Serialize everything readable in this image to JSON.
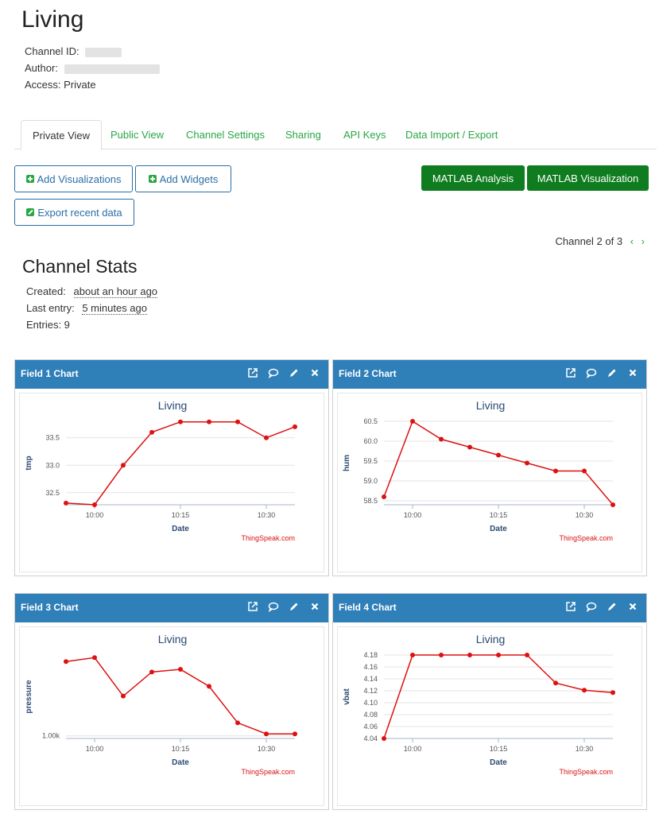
{
  "channel": {
    "title": "Living",
    "id_label": "Channel ID:",
    "author_label": "Author:",
    "access_label": "Access:",
    "access_value": "Private"
  },
  "tabs": [
    {
      "label": "Private View",
      "active": true
    },
    {
      "label": "Public View"
    },
    {
      "label": "Channel Settings"
    },
    {
      "label": "Sharing"
    },
    {
      "label": "API Keys"
    },
    {
      "label": "Data Import / Export"
    }
  ],
  "buttons": {
    "add_visualizations": "Add Visualizations",
    "add_widgets": "Add Widgets",
    "export_recent": "Export recent data",
    "matlab_analysis": "MATLAB Analysis",
    "matlab_visualization": "MATLAB Visualization"
  },
  "pager": {
    "text": "Channel 2 of 3",
    "prev": "‹",
    "next": "›"
  },
  "stats": {
    "title": "Channel Stats",
    "created_label": "Created:",
    "created_value": "about an hour ago",
    "last_entry_label": "Last entry:",
    "last_entry_value": "5 minutes ago",
    "entries_text": "Entries: 9"
  },
  "colors": {
    "header": "#2f7fb8",
    "accent": "#28a745",
    "line": "#dd1111",
    "matlab": "#0e7c1f"
  },
  "panels": [
    {
      "title": "Field 1 Chart"
    },
    {
      "title": "Field 2 Chart"
    },
    {
      "title": "Field 3 Chart"
    },
    {
      "title": "Field 4 Chart"
    }
  ],
  "chart_data": [
    {
      "type": "line",
      "title": "Living",
      "xlabel": "Date",
      "ylabel": "tmp",
      "credit": "ThingSpeak.com",
      "x_min": "09:55",
      "x_max": "10:35",
      "x_ticks": [
        "10:00",
        "10:15",
        "10:30"
      ],
      "y_ticks": [
        32.5,
        33.0,
        33.5
      ],
      "y_tick_labels": [
        "32.5",
        "33.0",
        "33.5"
      ],
      "ylim": [
        32.28,
        33.8
      ],
      "x": [
        "09:55",
        "10:00",
        "10:05",
        "10:10",
        "10:15",
        "10:20",
        "10:25",
        "10:30",
        "10:35"
      ],
      "values": [
        32.31,
        32.28,
        33.0,
        33.6,
        33.79,
        33.79,
        33.79,
        33.5,
        33.7
      ]
    },
    {
      "type": "line",
      "title": "Living",
      "xlabel": "Date",
      "ylabel": "hum",
      "credit": "ThingSpeak.com",
      "x_min": "09:55",
      "x_max": "10:35",
      "x_ticks": [
        "10:00",
        "10:15",
        "10:30"
      ],
      "y_ticks": [
        58.5,
        59.0,
        59.5,
        60.0,
        60.5
      ],
      "y_tick_labels": [
        "58.5",
        "59.0",
        "59.5",
        "60.0",
        "60.5"
      ],
      "ylim": [
        58.4,
        60.5
      ],
      "x": [
        "09:55",
        "10:00",
        "10:05",
        "10:10",
        "10:15",
        "10:20",
        "10:25",
        "10:30",
        "10:35"
      ],
      "values": [
        58.6,
        60.5,
        60.05,
        59.85,
        59.65,
        59.45,
        59.25,
        59.25,
        58.4
      ]
    },
    {
      "type": "line",
      "title": "Living",
      "xlabel": "Date",
      "ylabel": "pressure",
      "credit": "ThingSpeak.com",
      "x_min": "09:55",
      "x_max": "10:35",
      "x_ticks": [
        "10:00",
        "10:15",
        "10:30"
      ],
      "y_ticks": [
        1000
      ],
      "y_tick_labels": [
        "1.00k"
      ],
      "ylim": [
        999.6,
        1012.4
      ],
      "x": [
        "09:55",
        "10:00",
        "10:05",
        "10:10",
        "10:15",
        "10:20",
        "10:25",
        "10:30",
        "10:35"
      ],
      "values": [
        1011.4,
        1012.0,
        1006.1,
        1009.8,
        1010.2,
        1007.6,
        1002.0,
        1000.3,
        1000.3
      ]
    },
    {
      "type": "line",
      "title": "Living",
      "xlabel": "Date",
      "ylabel": "vbat",
      "credit": "ThingSpeak.com",
      "x_min": "09:55",
      "x_max": "10:35",
      "x_ticks": [
        "10:00",
        "10:15",
        "10:30"
      ],
      "y_ticks": [
        4.04,
        4.06,
        4.08,
        4.1,
        4.12,
        4.14,
        4.16,
        4.18
      ],
      "y_tick_labels": [
        "4.04",
        "4.06",
        "4.08",
        "4.10",
        "4.12",
        "4.14",
        "4.16",
        "4.18"
      ],
      "ylim": [
        4.04,
        4.18
      ],
      "x": [
        "09:55",
        "10:00",
        "10:05",
        "10:10",
        "10:15",
        "10:20",
        "10:25",
        "10:30",
        "10:35"
      ],
      "values": [
        4.04,
        4.18,
        4.18,
        4.18,
        4.18,
        4.18,
        4.133,
        4.121,
        4.117
      ]
    }
  ]
}
